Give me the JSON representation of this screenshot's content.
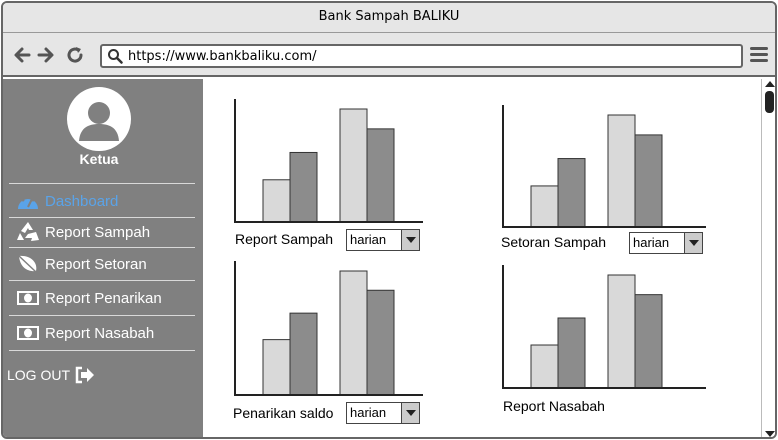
{
  "window": {
    "title": "Bank Sampah BALIKU"
  },
  "browser": {
    "url": "https://www.bankbaliku.com/"
  },
  "user": {
    "role": "Ketua"
  },
  "sidebar": {
    "items": [
      {
        "label": "Dashboard",
        "icon": "dashboard-icon",
        "active": true
      },
      {
        "label": "Report Sampah",
        "icon": "recycle-icon",
        "active": false
      },
      {
        "label": "Report Setoran",
        "icon": "leaf-icon",
        "active": false
      },
      {
        "label": "Report Penarikan",
        "icon": "money-icon",
        "active": false
      },
      {
        "label": "Report Nasabah",
        "icon": "money-icon",
        "active": false
      }
    ],
    "logout": "LOG OUT"
  },
  "colors": {
    "active": "#5aa3e8",
    "sidebar_bg": "#808080",
    "bar_light": "#d9d9d9",
    "bar_dark": "#8c8c8c"
  },
  "charts": [
    {
      "label": "Report Sampah",
      "select": "harian"
    },
    {
      "label": "Setoran Sampah",
      "select": "harian"
    },
    {
      "label": "Penarikan saldo",
      "select": "harian"
    },
    {
      "label": "Report Nasabah",
      "select": null
    }
  ],
  "chart_data": [
    {
      "type": "bar",
      "series": [
        {
          "values": [
            34,
            56
          ]
        },
        {
          "values": [
            91,
            75
          ]
        }
      ]
    },
    {
      "type": "bar",
      "series": [
        {
          "values": [
            33,
            55
          ]
        },
        {
          "values": [
            90,
            74
          ]
        }
      ]
    },
    {
      "type": "bar",
      "series": [
        {
          "values": [
            46,
            68
          ]
        },
        {
          "values": [
            103,
            87
          ]
        }
      ]
    },
    {
      "type": "bar",
      "series": [
        {
          "values": [
            35,
            57
          ]
        },
        {
          "values": [
            92,
            76
          ]
        }
      ]
    }
  ]
}
